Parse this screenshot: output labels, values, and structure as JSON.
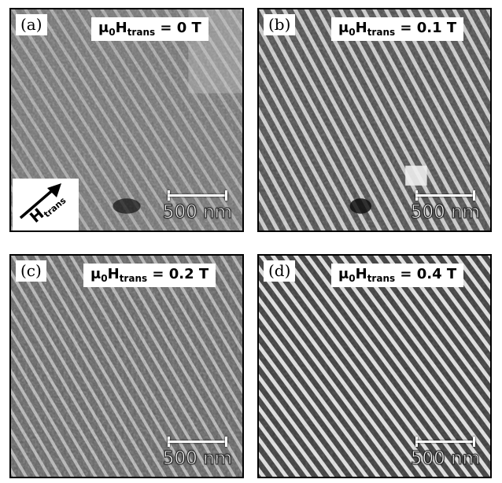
{
  "panels": [
    {
      "tag": "(a)",
      "field_prefix": "μ",
      "field_sub0": "0",
      "field_H": "H",
      "field_sub": "trans",
      "field_value": " = 0 T",
      "scale_label": "500 nm"
    },
    {
      "tag": "(b)",
      "field_prefix": "μ",
      "field_sub0": "0",
      "field_H": "H",
      "field_sub": "trans",
      "field_value": " = 0.1 T",
      "scale_label": "500 nm"
    },
    {
      "tag": "(c)",
      "field_prefix": "μ",
      "field_sub0": "0",
      "field_H": "H",
      "field_sub": "trans",
      "field_value": " = 0.2 T",
      "scale_label": "500 nm"
    },
    {
      "tag": "(d)",
      "field_prefix": "μ",
      "field_sub0": "0",
      "field_H": "H",
      "field_sub": "trans",
      "field_value": " = 0.4 T",
      "scale_label": "500 nm"
    }
  ],
  "arrow_label": {
    "H": "H",
    "sub": "trans"
  },
  "colors": {
    "stripe_light": "#d8d8d8",
    "stripe_dark": "#3a3a3a",
    "background_gray": "#7a7a7a"
  }
}
